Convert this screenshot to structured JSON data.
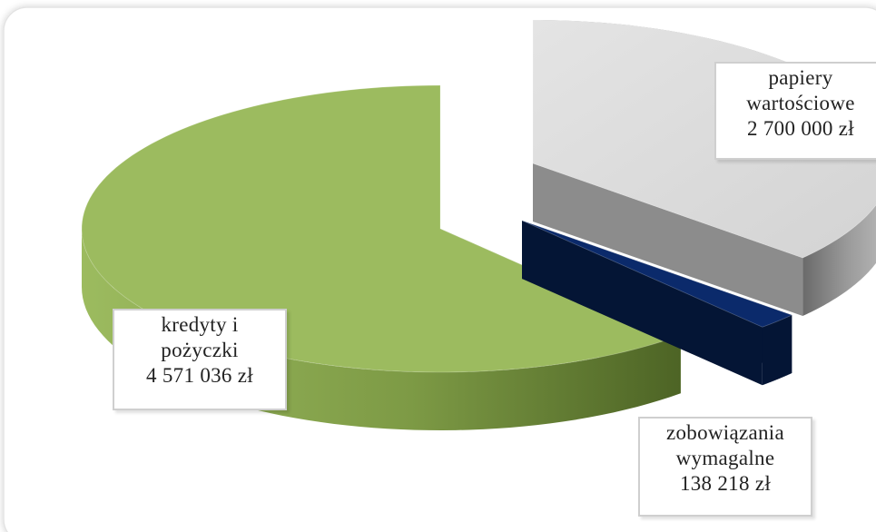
{
  "chart_data": {
    "type": "pie",
    "style": "3d-exploded",
    "slices": [
      {
        "category_lines": [
          "papiery",
          "wartościowe"
        ],
        "label": "2 700 000 zł",
        "value": 2700000,
        "color": "#d9d9d9",
        "side_color": "#8c8c8c"
      },
      {
        "category_lines": [
          "zobowiązania",
          "wymagalne"
        ],
        "label": "138 218 zł",
        "value": 138218,
        "color": "#0b2a6b",
        "side_color": "#041535"
      },
      {
        "category_lines": [
          "kredyty i",
          "pożyczki"
        ],
        "label": "4 571 036 zł",
        "value": 4571036,
        "color": "#9cbb5f",
        "side_color": "#6e8a3a"
      }
    ],
    "legend": "none"
  }
}
